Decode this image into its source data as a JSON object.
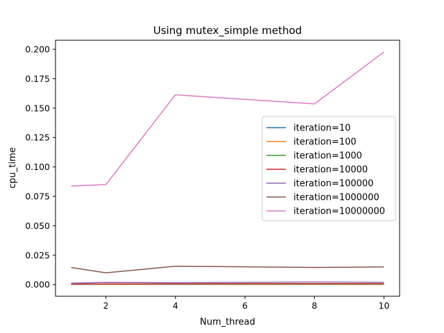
{
  "chart_data": {
    "type": "line",
    "title": "Using mutex_simple method",
    "xlabel": "Num_thread",
    "ylabel": "cpu_time",
    "x": [
      1,
      2,
      4,
      8,
      10
    ],
    "xlim": [
      0.55,
      10.45
    ],
    "ylim": [
      -0.0099,
      0.2077
    ],
    "xticks": [
      2,
      4,
      6,
      8,
      10
    ],
    "yticks": [
      0.0,
      0.025,
      0.05,
      0.075,
      0.1,
      0.125,
      0.15,
      0.175,
      0.2
    ],
    "ytick_labels": [
      "0.000",
      "0.025",
      "0.050",
      "0.075",
      "0.100",
      "0.125",
      "0.150",
      "0.175",
      "0.200"
    ],
    "legend_position": "center-right",
    "grid": false,
    "series": [
      {
        "name": "iteration=10",
        "color": "#1f77b4",
        "values": [
          0.0002,
          0.0002,
          0.0002,
          0.0002,
          0.0002
        ]
      },
      {
        "name": "iteration=100",
        "color": "#ff7f0e",
        "values": [
          0.0003,
          0.0003,
          0.0003,
          0.0003,
          0.0003
        ]
      },
      {
        "name": "iteration=1000",
        "color": "#2ca02c",
        "values": [
          0.0003,
          0.0004,
          0.0004,
          0.0005,
          0.0005
        ]
      },
      {
        "name": "iteration=10000",
        "color": "#d62728",
        "values": [
          0.0005,
          0.0006,
          0.0007,
          0.0008,
          0.0008
        ]
      },
      {
        "name": "iteration=100000",
        "color": "#9467bd",
        "values": [
          0.0012,
          0.0019,
          0.0016,
          0.0022,
          0.0019
        ]
      },
      {
        "name": "iteration=1000000",
        "color": "#8c564b",
        "values": [
          0.0145,
          0.01,
          0.0156,
          0.0146,
          0.015
        ]
      },
      {
        "name": "iteration=10000000",
        "color": "#e377c2",
        "values": [
          0.0838,
          0.085,
          0.1613,
          0.1536,
          0.1977
        ]
      }
    ]
  }
}
